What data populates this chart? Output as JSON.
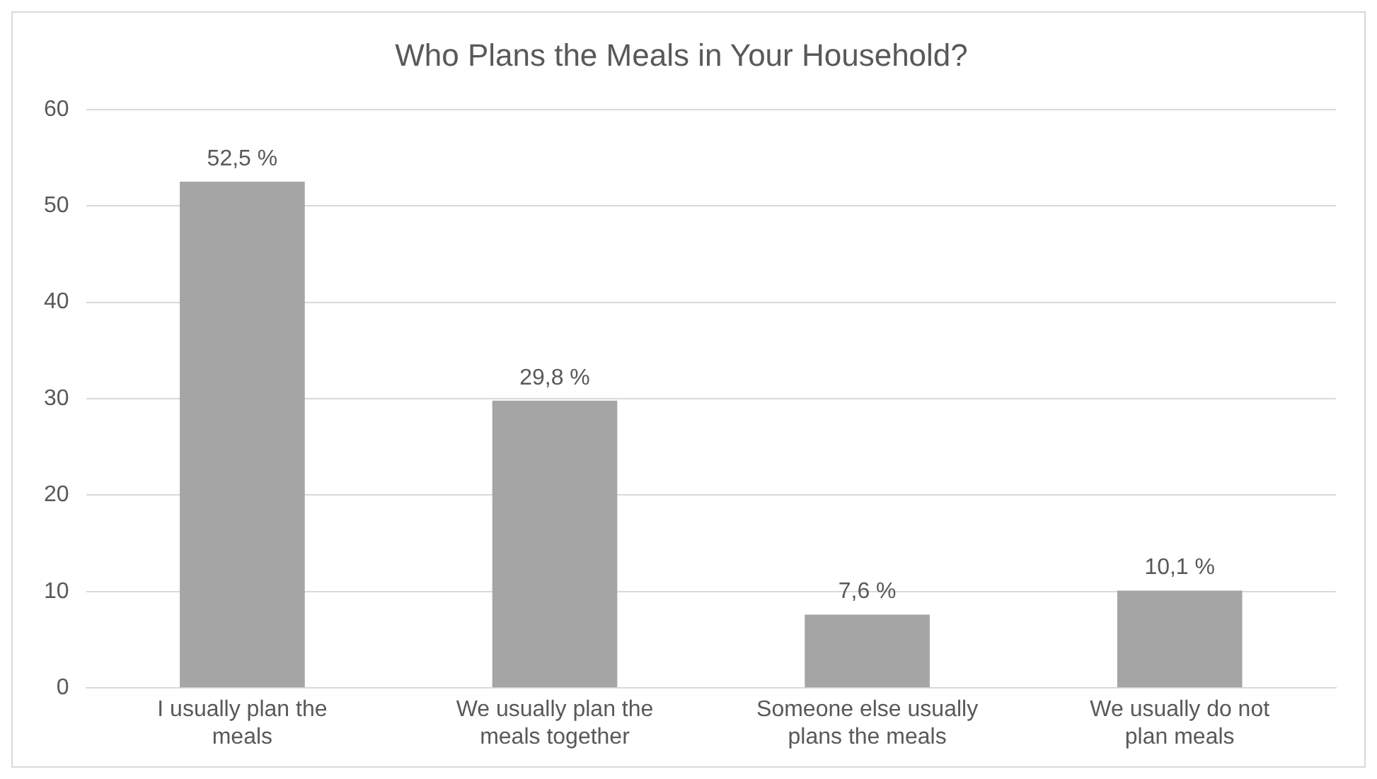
{
  "chart_data": {
    "type": "bar",
    "title": "Who Plans the Meals in Your Household?",
    "categories": [
      "I usually plan the meals",
      "We usually plan the meals together",
      "Someone else usually plans the meals",
      "We usually do not plan meals"
    ],
    "values": [
      52.5,
      29.8,
      7.6,
      10.1
    ],
    "value_labels": [
      "52,5 %",
      "29,8 %",
      "7,6 %",
      "10,1 %"
    ],
    "color": "#a5a5a5",
    "ylim": [
      0,
      60
    ],
    "yticks": [
      0,
      10,
      20,
      30,
      40,
      50,
      60
    ],
    "grid": "y",
    "legend": false
  }
}
